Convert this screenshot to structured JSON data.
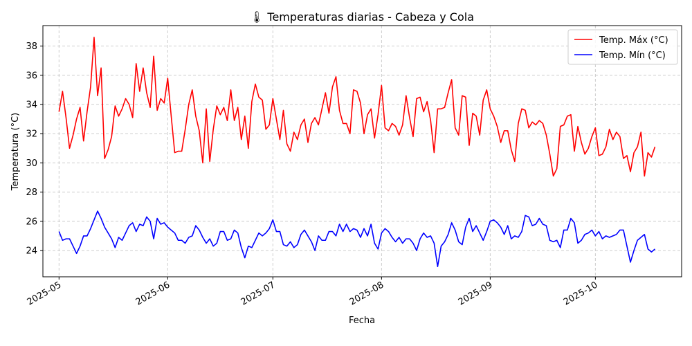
{
  "chart_data": {
    "type": "line",
    "title": "🌡 Temperaturas diarias - Cabeza y Cola",
    "xlabel": "Fecha",
    "ylabel": "Temperatura (°C)",
    "ylim": [
      22.2,
      39.4
    ],
    "yticks": [
      24,
      26,
      28,
      30,
      32,
      34,
      36,
      38
    ],
    "x_start": "2025-05-01",
    "x_range_days": [
      -4.6,
      177.6
    ],
    "xticks": [
      {
        "label": "2025-05",
        "day": 0
      },
      {
        "label": "2025-06",
        "day": 31
      },
      {
        "label": "2025-07",
        "day": 61
      },
      {
        "label": "2025-08",
        "day": 92
      },
      {
        "label": "2025-09",
        "day": 123
      },
      {
        "label": "2025-10",
        "day": 153
      }
    ],
    "grid": true,
    "legend_position": "top-right",
    "series": [
      {
        "name": "Temp. Máx (°C)",
        "color": "#ff0000",
        "values": [
          33.5,
          34.9,
          33.1,
          31.0,
          31.9,
          33.0,
          33.8,
          31.5,
          33.5,
          35.2,
          38.6,
          34.6,
          36.5,
          30.3,
          30.9,
          31.8,
          33.9,
          33.2,
          33.7,
          34.4,
          34.0,
          33.1,
          36.8,
          34.9,
          36.5,
          34.8,
          33.8,
          37.3,
          33.6,
          34.4,
          34.1,
          35.8,
          33.2,
          30.7,
          30.8,
          30.8,
          32.3,
          34.0,
          35.0,
          33.2,
          32.2,
          30.0,
          33.7,
          30.1,
          32.3,
          33.9,
          33.3,
          33.8,
          32.9,
          35.0,
          32.9,
          33.8,
          31.6,
          33.2,
          31.0,
          34.2,
          35.4,
          34.5,
          34.3,
          32.3,
          32.6,
          34.4,
          33.0,
          31.6,
          33.6,
          31.3,
          30.8,
          32.1,
          31.6,
          32.6,
          33.0,
          31.4,
          32.7,
          33.1,
          32.6,
          33.7,
          34.8,
          33.4,
          35.2,
          35.9,
          33.6,
          32.7,
          32.7,
          32.0,
          35.0,
          34.9,
          34.1,
          32.0,
          33.3,
          33.7,
          31.7,
          33.3,
          35.3,
          32.4,
          32.2,
          32.7,
          32.5,
          31.9,
          32.6,
          34.6,
          33.1,
          31.8,
          34.4,
          34.5,
          33.5,
          34.2,
          32.9,
          30.7,
          33.7,
          33.7,
          33.8,
          34.8,
          35.7,
          32.4,
          31.9,
          34.6,
          34.5,
          31.2,
          33.4,
          33.2,
          31.9,
          34.3,
          35.0,
          33.7,
          33.2,
          32.5,
          31.4,
          32.2,
          32.2,
          30.9,
          30.1,
          32.7,
          33.7,
          33.6,
          32.4,
          32.8,
          32.6,
          32.9,
          32.7,
          31.9,
          30.6,
          29.1,
          29.6,
          32.5,
          32.6,
          33.2,
          33.3,
          30.8,
          32.5,
          31.4,
          30.6,
          31.0,
          31.8,
          32.4,
          30.5,
          30.6,
          31.1,
          32.3,
          31.6,
          32.1,
          31.8,
          30.3,
          30.5,
          29.4,
          30.7,
          31.1,
          32.1,
          29.1,
          30.7,
          30.4,
          31.1
        ]
      },
      {
        "name": "Temp. Mín (°C)",
        "color": "#0000ff",
        "values": [
          25.3,
          24.7,
          24.8,
          24.8,
          24.3,
          23.8,
          24.3,
          25.0,
          25.0,
          25.5,
          26.1,
          26.7,
          26.2,
          25.6,
          25.2,
          24.8,
          24.2,
          24.9,
          24.7,
          25.2,
          25.7,
          25.9,
          25.3,
          25.8,
          25.7,
          26.3,
          26.0,
          24.8,
          26.2,
          25.8,
          25.9,
          25.6,
          25.4,
          25.2,
          24.7,
          24.7,
          24.5,
          24.9,
          25.0,
          25.7,
          25.4,
          24.9,
          24.5,
          24.8,
          24.3,
          24.5,
          25.3,
          25.3,
          24.7,
          24.8,
          25.4,
          25.2,
          24.2,
          23.5,
          24.3,
          24.2,
          24.7,
          25.2,
          25.0,
          25.2,
          25.5,
          26.1,
          25.3,
          25.3,
          24.4,
          24.3,
          24.6,
          24.2,
          24.4,
          25.1,
          25.4,
          25.0,
          24.6,
          24.0,
          25.0,
          24.7,
          24.7,
          25.3,
          25.3,
          25.0,
          25.8,
          25.3,
          25.8,
          25.3,
          25.5,
          25.4,
          24.9,
          25.5,
          25.0,
          25.8,
          24.5,
          24.1,
          25.2,
          25.5,
          25.3,
          24.9,
          24.6,
          24.9,
          24.5,
          24.8,
          24.8,
          24.5,
          24.0,
          24.8,
          25.2,
          24.9,
          25.0,
          24.5,
          22.9,
          24.3,
          24.6,
          25.1,
          25.9,
          25.4,
          24.6,
          24.4,
          25.6,
          26.2,
          25.3,
          25.7,
          25.2,
          24.7,
          25.3,
          26.0,
          26.1,
          25.9,
          25.6,
          25.1,
          25.7,
          24.8,
          25.0,
          24.9,
          25.3,
          26.4,
          26.3,
          25.7,
          25.8,
          26.2,
          25.8,
          25.7,
          24.7,
          24.6,
          24.7,
          24.2,
          25.4,
          25.4,
          26.2,
          25.9,
          24.5,
          24.7,
          25.1,
          25.2,
          25.4,
          25.0,
          25.3,
          24.8,
          25.0,
          24.9,
          25.0,
          25.1,
          25.4,
          25.4,
          24.3,
          23.2,
          24.0,
          24.7,
          24.9,
          25.1,
          24.1,
          23.9,
          24.1
        ]
      }
    ]
  }
}
